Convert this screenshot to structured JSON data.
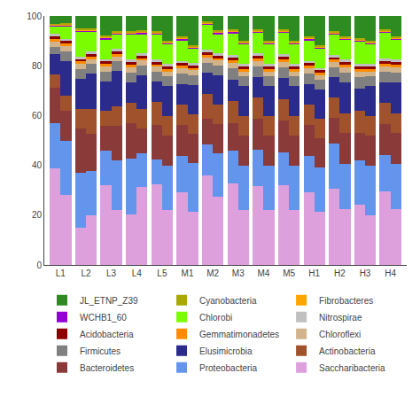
{
  "chart_data": {
    "type": "bar",
    "stacked": true,
    "categories": [
      "L1",
      null,
      "L2",
      null,
      "L3",
      null,
      "L4",
      null,
      "L5",
      null,
      "M1",
      null,
      "M2",
      null,
      "M3",
      null,
      "M4",
      null,
      "M5",
      null,
      "H1",
      null,
      "H2",
      null,
      "H3",
      null,
      "H4",
      null
    ],
    "ylim": [
      0,
      100
    ],
    "yticks": [
      0,
      20,
      40,
      60,
      80,
      100
    ],
    "grid": false,
    "legend": "bottom",
    "series": [
      {
        "name": "Saccharibacteria",
        "color": "#DDA0DD",
        "values": [
          38.72,
          27.95,
          14.94,
          19.91,
          31.89,
          21.92,
          20.34,
          31.25,
          32.23,
          21.92,
          29.06,
          21.49,
          35.96,
          27.35,
          32.85,
          21.92,
          31.5,
          21.92,
          32.17,
          21.92,
          29.06,
          21.49,
          30.51,
          22.36,
          24.37,
          19.93,
          29.4,
          22.36
        ]
      },
      {
        "name": "Proteobacteria",
        "color": "#6495ED",
        "values": [
          18.35,
          21.98,
          21.93,
          17.95,
          13.96,
          19.94,
          22.38,
          13.69,
          10.07,
          17.95,
          14.54,
          19.55,
          12.33,
          17.6,
          13.14,
          17.95,
          14.69,
          17.95,
          12.86,
          17.95,
          14.54,
          17.6,
          18.31,
          18.31,
          17.72,
          19.94,
          14.69,
          18.31
        ]
      },
      {
        "name": "Bacteroidetes",
        "color": "#8B3A3A",
        "values": [
          14.27,
          11.99,
          17.95,
          14.96,
          9.97,
          13.96,
          14.24,
          9.78,
          14.1,
          11.96,
          12.46,
          11.73,
          10.28,
          11.73,
          10.95,
          11.96,
          12.59,
          11.96,
          12.86,
          11.96,
          12.46,
          11.73,
          10.17,
          12.21,
          11.07,
          11.96,
          12.59,
          12.21
        ]
      },
      {
        "name": "Actinobacteria",
        "color": "#A0522D",
        "values": [
          5.1,
          5.99,
          7.98,
          9.97,
          5.98,
          7.98,
          8.14,
          7.82,
          9.06,
          7.98,
          8.31,
          7.82,
          10.28,
          7.82,
          8.76,
          7.98,
          8.39,
          7.98,
          8.57,
          7.98,
          8.31,
          7.82,
          8.14,
          8.14,
          8.86,
          7.98,
          8.39,
          8.14
        ]
      },
      {
        "name": "Elusimicrobia",
        "color": "#2B2B8B",
        "values": [
          8.15,
          13.99,
          11.96,
          13.96,
          11.96,
          13.96,
          8.14,
          13.69,
          8.06,
          11.96,
          8.31,
          11.73,
          8.22,
          11.73,
          8.76,
          11.96,
          8.39,
          11.96,
          8.57,
          11.96,
          8.31,
          11.73,
          8.14,
          12.21,
          8.86,
          11.96,
          8.39,
          12.21
        ]
      },
      {
        "name": "Firmicutes",
        "color": "#808080",
        "values": [
          3.06,
          4.0,
          3.99,
          3.99,
          3.99,
          3.99,
          4.07,
          3.91,
          4.03,
          3.99,
          4.15,
          3.91,
          4.11,
          3.91,
          4.38,
          3.99,
          4.2,
          3.99,
          4.29,
          3.99,
          4.15,
          3.91,
          4.07,
          4.07,
          4.43,
          3.99,
          4.2,
          4.07
        ]
      },
      {
        "name": "Chloroflexi",
        "color": "#D2B48C",
        "values": [
          2.04,
          2.0,
          1.99,
          1.99,
          1.99,
          1.99,
          2.03,
          1.96,
          2.01,
          1.99,
          2.08,
          1.96,
          2.06,
          1.96,
          2.19,
          1.99,
          2.1,
          1.99,
          2.14,
          1.99,
          2.08,
          1.96,
          2.03,
          2.03,
          2.21,
          1.99,
          2.1,
          2.03
        ]
      },
      {
        "name": "Gemmatimonadetes",
        "color": "#FF8C00",
        "values": [
          1.02,
          1.0,
          1.0,
          1.0,
          1.0,
          1.0,
          1.02,
          0.98,
          1.01,
          1.0,
          1.04,
          0.98,
          1.03,
          0.98,
          1.1,
          1.0,
          1.05,
          1.0,
          1.07,
          1.0,
          1.04,
          0.98,
          1.02,
          1.02,
          1.11,
          1.0,
          1.05,
          1.02
        ]
      },
      {
        "name": "Acidobacteria",
        "color": "#8B0000",
        "values": [
          1.02,
          1.0,
          1.0,
          1.0,
          1.0,
          1.0,
          1.02,
          0.98,
          1.01,
          1.0,
          1.04,
          0.98,
          1.03,
          0.98,
          1.1,
          1.0,
          1.05,
          1.0,
          1.07,
          1.0,
          1.04,
          0.98,
          1.02,
          1.02,
          1.11,
          1.0,
          1.05,
          1.02
        ]
      },
      {
        "name": "Nitrospirae",
        "color": "#C0C0C0",
        "values": [
          1.02,
          1.0,
          1.0,
          1.0,
          1.0,
          1.0,
          1.02,
          0.98,
          1.01,
          1.0,
          1.04,
          0.98,
          1.03,
          0.98,
          1.1,
          1.0,
          1.05,
          1.0,
          1.07,
          1.0,
          1.04,
          0.98,
          1.02,
          1.02,
          1.11,
          1.0,
          1.05,
          1.02
        ]
      },
      {
        "name": "Chlorobi",
        "color": "#7CFC00",
        "values": [
          3.06,
          5.0,
          9.97,
          7.98,
          7.98,
          5.98,
          10.17,
          7.82,
          10.07,
          7.98,
          8.31,
          5.87,
          10.28,
          7.82,
          8.76,
          7.98,
          8.39,
          7.98,
          8.57,
          7.98,
          8.31,
          7.82,
          8.14,
          8.14,
          8.86,
          7.98,
          10.49,
          8.14
        ]
      },
      {
        "name": "WCHB1_60",
        "color": "#9400D3",
        "values": [
          0.51,
          0.5,
          0.5,
          0.5,
          0.5,
          0.5,
          0.51,
          0.49,
          0.5,
          0.5,
          0.52,
          0.49,
          0.51,
          0.49,
          0.55,
          0.5,
          0.52,
          0.5,
          0.54,
          0.5,
          0.52,
          0.49,
          0.51,
          0.51,
          0.55,
          0.5,
          0.52,
          0.51
        ]
      },
      {
        "name": "Fibrobacteres",
        "color": "#FFA500",
        "values": [
          0.31,
          0.3,
          0.3,
          0.3,
          0.3,
          0.3,
          0.31,
          0.29,
          0.3,
          0.3,
          0.31,
          0.29,
          0.31,
          0.29,
          0.33,
          0.3,
          0.31,
          0.3,
          0.32,
          0.3,
          0.31,
          0.29,
          0.31,
          0.31,
          0.33,
          0.3,
          0.31,
          0.31
        ]
      },
      {
        "name": "Cyanobacteria",
        "color": "#A9A900",
        "values": [
          0.31,
          0.3,
          0.5,
          0.5,
          0.5,
          0.5,
          0.51,
          0.49,
          0.5,
          0.5,
          0.52,
          0.49,
          0.51,
          0.49,
          0.55,
          0.5,
          0.52,
          0.5,
          0.54,
          0.5,
          0.52,
          0.49,
          0.51,
          0.51,
          0.55,
          0.5,
          0.52,
          0.51
        ]
      },
      {
        "name": "JL_ETNP_Z39",
        "color": "#2E8B22",
        "values": [
          3.06,
          3.0,
          4.99,
          4.99,
          7.98,
          5.98,
          6.1,
          5.87,
          6.04,
          9.97,
          8.31,
          11.73,
          2.06,
          5.87,
          5.48,
          9.97,
          5.25,
          9.97,
          5.36,
          9.97,
          8.31,
          11.73,
          6.1,
          8.14,
          8.86,
          9.97,
          5.25,
          8.14
        ]
      }
    ]
  }
}
